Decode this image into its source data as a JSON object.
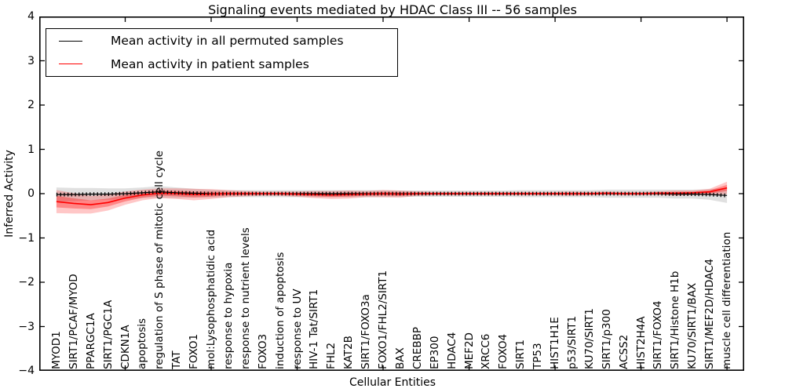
{
  "title": "Signaling events mediated by HDAC Class III -- 56 samples",
  "legend": {
    "items": [
      {
        "label": "Mean activity in all permuted samples",
        "color": "#000000"
      },
      {
        "label": "Mean activity in patient samples",
        "color": "#ff0000"
      }
    ]
  },
  "chart_data": {
    "type": "line",
    "title": "Signaling events mediated by HDAC Class III -- 56 samples",
    "xlabel": "Cellular Entities",
    "ylabel": "Inferred Activity",
    "ylim": [
      -4,
      4
    ],
    "xlim": [
      0,
      41
    ],
    "yticks": [
      4,
      3,
      2,
      1,
      0,
      -1,
      -2,
      -3,
      -4
    ],
    "ytick_labels": [
      "4",
      "3",
      "2",
      "1",
      "0",
      "−1",
      "−2",
      "−3",
      "−4"
    ],
    "xtick_units_every": 5,
    "grid": false,
    "legend_position": "upper left",
    "categories": [
      "MYOD1",
      "SIRT1/PCAF/MYOD",
      "PPARGC1A",
      "SIRT1/PGC1A",
      "CDKN1A",
      "apoptosis",
      "regulation of S phase of mitotic cell cycle",
      "TAT",
      "FOXO1",
      "mol:Lysophosphatidic acid",
      "response to hypoxia",
      "response to nutrient levels",
      "FOXO3",
      "induction of apoptosis",
      "response to UV",
      "HIV-1 Tat/SIRT1",
      "FHL2",
      "KAT2B",
      "SIRT1/FOXO3a",
      "FOXO1/FHL2/SIRT1",
      "BAX",
      "CREBBP",
      "EP300",
      "HDAC4",
      "MEF2D",
      "XRCC6",
      "FOXO4",
      "SIRT1",
      "TP53",
      "HIST1H1E",
      "p53/SIRT1",
      "KU70/SIRT1",
      "SIRT1/p300",
      "ACSS2",
      "HIST2H4A",
      "SIRT1/FOXO4",
      "SIRT1/Histone H1b",
      "KU70/SIRT1/BAX",
      "SIRT1/MEF2D/HDAC4",
      "muscle cell differentiation"
    ],
    "series": [
      {
        "name": "Mean activity in all permuted samples",
        "color": "#000000",
        "band_color": "#999999",
        "values": [
          -0.02,
          -0.02,
          -0.01,
          -0.01,
          0.0,
          0.02,
          0.04,
          0.02,
          0.01,
          0.0,
          0.0,
          0.0,
          0.0,
          0.0,
          0.0,
          0.0,
          0.0,
          0.0,
          0.0,
          0.0,
          0.0,
          0.0,
          0.0,
          0.0,
          0.0,
          0.0,
          0.0,
          0.0,
          0.0,
          0.0,
          0.0,
          0.0,
          0.0,
          0.0,
          0.0,
          0.0,
          -0.01,
          -0.01,
          -0.02,
          -0.04
        ],
        "band_halfwidth": [
          0.16,
          0.15,
          0.14,
          0.13,
          0.12,
          0.12,
          0.13,
          0.12,
          0.1,
          0.09,
          0.08,
          0.08,
          0.08,
          0.08,
          0.08,
          0.08,
          0.08,
          0.08,
          0.08,
          0.08,
          0.07,
          0.07,
          0.07,
          0.07,
          0.07,
          0.07,
          0.07,
          0.08,
          0.08,
          0.08,
          0.08,
          0.08,
          0.09,
          0.09,
          0.09,
          0.09,
          0.1,
          0.1,
          0.12,
          0.17
        ]
      },
      {
        "name": "Mean activity in patient samples",
        "color": "#ff0000",
        "band_color": "#ff0000",
        "values": [
          -0.18,
          -0.22,
          -0.25,
          -0.2,
          -0.1,
          -0.03,
          0.01,
          0.0,
          -0.02,
          -0.01,
          0.0,
          0.0,
          0.0,
          0.0,
          -0.01,
          -0.02,
          -0.03,
          -0.02,
          -0.01,
          0.0,
          -0.01,
          0.0,
          0.0,
          0.0,
          0.0,
          0.0,
          0.0,
          0.0,
          0.0,
          0.0,
          0.0,
          0.0,
          0.01,
          0.0,
          0.0,
          0.01,
          0.01,
          0.02,
          0.04,
          0.13
        ],
        "band_halfwidth": [
          0.26,
          0.23,
          0.2,
          0.18,
          0.15,
          0.12,
          0.11,
          0.12,
          0.13,
          0.11,
          0.08,
          0.06,
          0.05,
          0.05,
          0.06,
          0.08,
          0.09,
          0.09,
          0.07,
          0.08,
          0.08,
          0.05,
          0.04,
          0.04,
          0.04,
          0.04,
          0.04,
          0.04,
          0.04,
          0.04,
          0.05,
          0.04,
          0.04,
          0.04,
          0.04,
          0.04,
          0.06,
          0.05,
          0.07,
          0.14
        ]
      }
    ]
  }
}
